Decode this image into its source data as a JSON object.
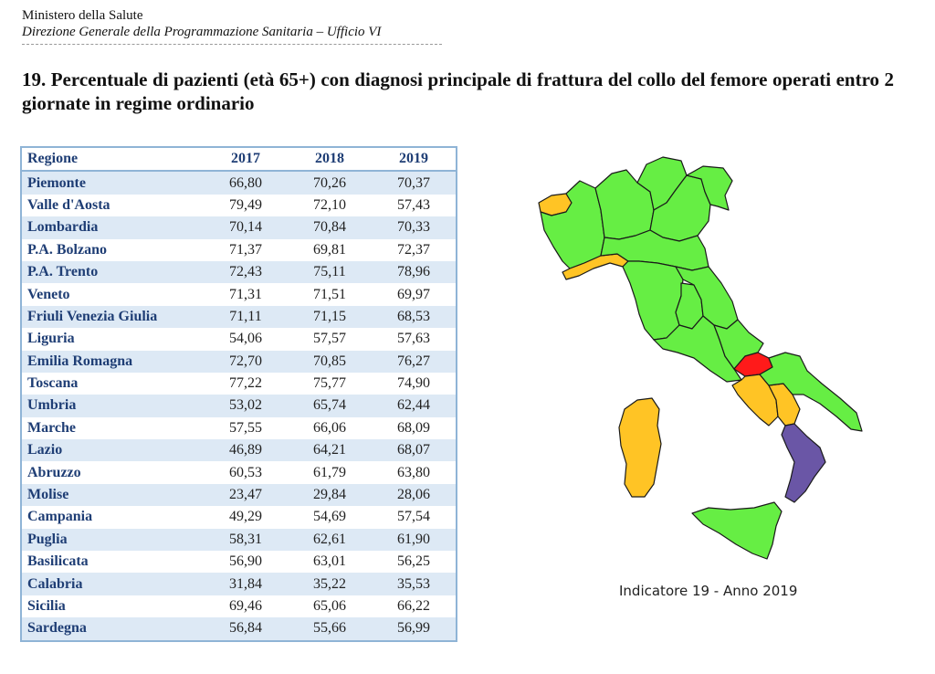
{
  "header": {
    "ministry": "Ministero della Salute",
    "direction": "Direzione Generale della Programmazione Sanitaria – Ufficio VI"
  },
  "title": "19. Percentuale di pazienti (età 65+) con diagnosi principale di frattura del collo del femore operati entro 2 giornate in regime ordinario",
  "table": {
    "columns": [
      "Regione",
      "2017",
      "2018",
      "2019"
    ],
    "rows": [
      [
        "Piemonte",
        "66,80",
        "70,26",
        "70,37"
      ],
      [
        "Valle d'Aosta",
        "79,49",
        "72,10",
        "57,43"
      ],
      [
        "Lombardia",
        "70,14",
        "70,84",
        "70,33"
      ],
      [
        "P.A. Bolzano",
        "71,37",
        "69,81",
        "72,37"
      ],
      [
        "P.A. Trento",
        "72,43",
        "75,11",
        "78,96"
      ],
      [
        "Veneto",
        "71,31",
        "71,51",
        "69,97"
      ],
      [
        "Friuli Venezia Giulia",
        "71,11",
        "71,15",
        "68,53"
      ],
      [
        "Liguria",
        "54,06",
        "57,57",
        "57,63"
      ],
      [
        "Emilia Romagna",
        "72,70",
        "70,85",
        "76,27"
      ],
      [
        "Toscana",
        "77,22",
        "75,77",
        "74,90"
      ],
      [
        "Umbria",
        "53,02",
        "65,74",
        "62,44"
      ],
      [
        "Marche",
        "57,55",
        "66,06",
        "68,09"
      ],
      [
        "Lazio",
        "46,89",
        "64,21",
        "68,07"
      ],
      [
        "Abruzzo",
        "60,53",
        "61,79",
        "63,80"
      ],
      [
        "Molise",
        "23,47",
        "29,84",
        "28,06"
      ],
      [
        "Campania",
        "49,29",
        "54,69",
        "57,54"
      ],
      [
        "Puglia",
        "58,31",
        "62,61",
        "61,90"
      ],
      [
        "Basilicata",
        "56,90",
        "63,01",
        "56,25"
      ],
      [
        "Calabria",
        "31,84",
        "35,22",
        "35,53"
      ],
      [
        "Sicilia",
        "69,46",
        "65,06",
        "66,22"
      ],
      [
        "Sardegna",
        "56,84",
        "55,66",
        "56,99"
      ]
    ]
  },
  "map": {
    "caption": "Indicatore 19 - Anno 2019",
    "colors": {
      "green": "#66ee44",
      "yellow": "#ffc425",
      "red": "#ff1a1a",
      "purple": "#6a56a6",
      "border": "#1a1a1a"
    },
    "regions": {
      "valle-daosta": "yellow",
      "liguria": "yellow",
      "campania": "yellow",
      "basilicata": "yellow",
      "sardegna": "yellow",
      "molise": "red",
      "calabria": "purple",
      "piemonte": "green",
      "lombardia": "green",
      "trentino-alto-adige": "green",
      "veneto": "green",
      "friuli-venezia-giulia": "green",
      "emilia-romagna": "green",
      "toscana": "green",
      "umbria": "green",
      "marche": "green",
      "lazio": "green",
      "abruzzo": "green",
      "puglia": "green",
      "sicilia": "green"
    }
  }
}
